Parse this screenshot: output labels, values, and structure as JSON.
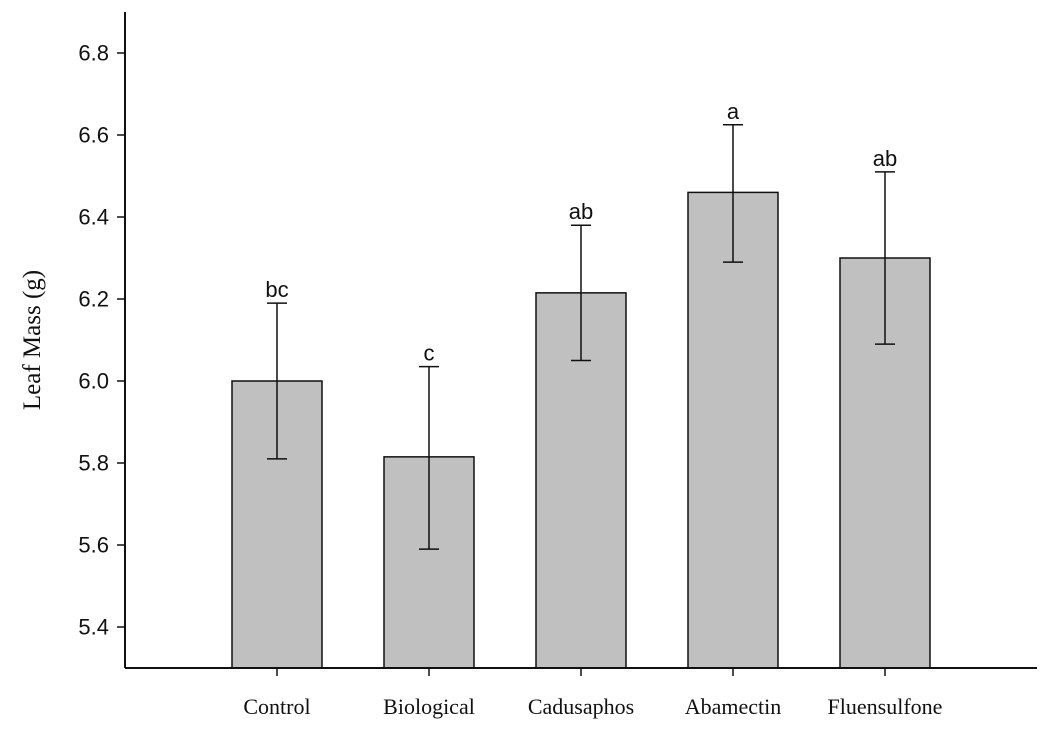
{
  "chart_data": {
    "type": "bar",
    "title": "",
    "xlabel": "",
    "ylabel": "Leaf Mass (g)",
    "categories": [
      "Control",
      "Biological",
      "Cadusaphos",
      "Abamectin",
      "Fluensulfone"
    ],
    "values": [
      6.0,
      5.815,
      6.215,
      6.46,
      6.3
    ],
    "error_upper": [
      6.19,
      6.035,
      6.38,
      6.625,
      6.51
    ],
    "error_lower": [
      5.81,
      5.59,
      6.05,
      6.29,
      6.09
    ],
    "significance_letters": [
      "bc",
      "c",
      "ab",
      "a",
      "ab"
    ],
    "ylim": [
      5.3,
      6.9
    ],
    "yticks": [
      5.4,
      5.6,
      5.8,
      6.0,
      6.2,
      6.4,
      6.6,
      6.8
    ],
    "ytick_labels": [
      "5.4",
      "5.6",
      "5.8",
      "6.0",
      "6.2",
      "6.4",
      "6.6",
      "6.8"
    ],
    "grid": false,
    "bar_color": "#c0c0c0",
    "edge_color": "#111111"
  }
}
